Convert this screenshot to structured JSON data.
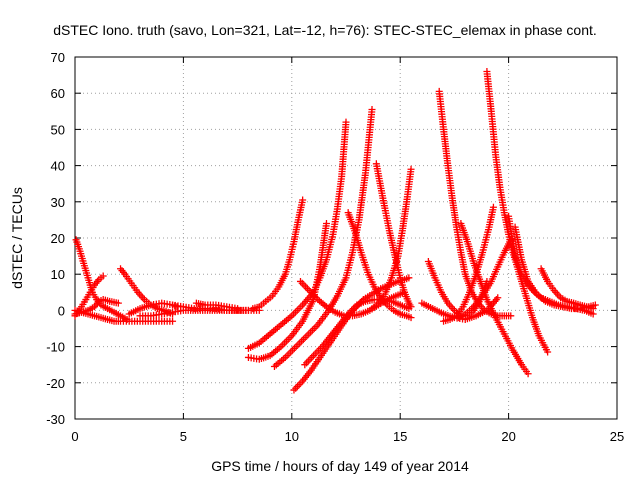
{
  "chart_data": {
    "type": "scatter",
    "title": "dSTEC Iono. truth (savo, Lon=321, Lat=-12, h=76): STEC-STEC_elemax in phase cont.",
    "xlabel": "GPS time / hours of day 149 of year 2014",
    "ylabel": "dSTEC  / TECUs",
    "xlim": [
      0,
      25
    ],
    "ylim": [
      -30,
      70
    ],
    "xticks": [
      0,
      5,
      10,
      15,
      20,
      25
    ],
    "yticks": [
      -30,
      -20,
      -10,
      0,
      10,
      20,
      30,
      40,
      50,
      60,
      70
    ],
    "grid": true,
    "marker": "+",
    "color": "#ff0000",
    "series": [
      {
        "x": [
          0.05,
          0.2,
          0.4,
          0.6,
          0.8,
          1.0,
          1.2,
          1.5,
          1.8,
          2.1,
          2.4
        ],
        "y": [
          19.5,
          17,
          13,
          9,
          5,
          3,
          1.5,
          0.5,
          -0.5,
          -1.5,
          -2.5
        ]
      },
      {
        "x": [
          0.0,
          0.3,
          0.6,
          0.9,
          1.1,
          1.3,
          1.6,
          2.0
        ],
        "y": [
          -1,
          -0.5,
          0,
          1,
          2.5,
          3,
          2.5,
          2
        ]
      },
      {
        "x": [
          0.0,
          0.3,
          0.6,
          0.9,
          1.2,
          1.5,
          1.8,
          2.1,
          2.5,
          3.0,
          3.5,
          4.0,
          4.5
        ],
        "y": [
          0,
          -0.5,
          -1,
          -1.5,
          -2,
          -2.5,
          -3,
          -3,
          -3,
          -3,
          -3,
          -3,
          -3
        ]
      },
      {
        "x": [
          0.0,
          0.3,
          0.5,
          0.7,
          0.9,
          1.1,
          1.3
        ],
        "y": [
          -1.5,
          1,
          3,
          5,
          7,
          8.5,
          9.5
        ]
      },
      {
        "x": [
          2.1,
          2.3,
          2.6,
          2.9,
          3.2,
          3.5,
          3.8,
          4.1,
          4.5
        ],
        "y": [
          11.5,
          10,
          7.5,
          5,
          3,
          1.5,
          0.5,
          0,
          -1
        ]
      },
      {
        "x": [
          2.5,
          3.0,
          3.5,
          4.0,
          4.5,
          4.7
        ],
        "y": [
          -1,
          0.5,
          1.5,
          2,
          1.5,
          1
        ]
      },
      {
        "x": [
          3.0,
          3.5,
          4.0,
          4.5,
          5.0,
          6.0,
          7.0,
          8.0
        ],
        "y": [
          -1.5,
          -1.5,
          -1,
          -0.5,
          0,
          0,
          0,
          0
        ]
      },
      {
        "x": [
          4.5,
          5.0,
          5.5,
          6.0,
          6.5,
          7.0,
          7.5,
          8.0,
          8.5
        ],
        "y": [
          1.5,
          1,
          0.5,
          0.5,
          0.5,
          0,
          0,
          0,
          0
        ]
      },
      {
        "x": [
          5.6,
          6.0,
          6.5,
          7.0,
          7.5
        ],
        "y": [
          2,
          1.5,
          1.5,
          1,
          0.5
        ]
      },
      {
        "x": [
          8.2,
          8.5,
          8.8,
          9.1,
          9.4,
          9.7,
          9.9,
          10.1,
          10.3,
          10.5
        ],
        "y": [
          0.5,
          1,
          2.5,
          4,
          6.5,
          10,
          14,
          19,
          25,
          30.5
        ]
      },
      {
        "x": [
          8.0,
          8.5,
          9.0,
          9.5,
          10.0,
          10.5,
          11.0,
          11.3,
          11.6,
          11.9,
          12.1,
          12.3,
          12.5
        ],
        "y": [
          -10.5,
          -9,
          -6.5,
          -4,
          -1.5,
          1.5,
          5,
          9,
          14,
          21,
          28,
          37,
          52
        ]
      },
      {
        "x": [
          8.0,
          8.5,
          9.0,
          9.5,
          10.0,
          10.5,
          11.0,
          11.3,
          11.6
        ],
        "y": [
          -13,
          -13.5,
          -12.5,
          -10,
          -7,
          -3,
          3,
          12,
          24
        ]
      },
      {
        "x": [
          9.2,
          9.7,
          10.2,
          10.7,
          11.2,
          11.7,
          12.1,
          12.5,
          12.8,
          13.1,
          13.4,
          13.7
        ],
        "y": [
          -15.5,
          -13,
          -10,
          -7,
          -4,
          0,
          4,
          9,
          16,
          25,
          38,
          55.5
        ]
      },
      {
        "x": [
          10.1,
          10.5,
          10.9,
          11.3,
          11.7,
          12.1,
          12.5,
          12.9,
          13.3,
          13.7,
          14.1,
          14.5,
          14.9,
          15.2,
          15.4
        ],
        "y": [
          -22,
          -19.5,
          -16.5,
          -13,
          -9.5,
          -6,
          -2.5,
          0.5,
          3,
          4.5,
          6,
          7,
          8,
          8.5,
          9
        ]
      },
      {
        "x": [
          10.6,
          11.0,
          11.4,
          11.8,
          12.2,
          12.6,
          13.0,
          13.4,
          13.8,
          14.2,
          14.6,
          15.0,
          15.4
        ],
        "y": [
          -15,
          -12.5,
          -10,
          -7,
          -4,
          -1,
          1.5,
          2.5,
          3,
          3,
          2.5,
          1.5,
          0.5
        ]
      },
      {
        "x": [
          10.4,
          10.8,
          11.2,
          11.6,
          12.0,
          12.4,
          12.8,
          13.2,
          13.6,
          14.0,
          14.4,
          14.8,
          15.2
        ],
        "y": [
          8,
          5.5,
          3,
          1,
          -0.5,
          -1.5,
          -1.5,
          -1,
          0,
          1.5,
          3,
          4,
          5
        ]
      },
      {
        "x": [
          12.6,
          12.9,
          13.2,
          13.5,
          13.8,
          14.1,
          14.4,
          14.7,
          15.0,
          15.3,
          15.5
        ],
        "y": [
          27,
          22,
          16,
          10.5,
          6.5,
          3.5,
          1.5,
          0,
          -1,
          -1.5,
          -2
        ]
      },
      {
        "x": [
          13.9,
          14.2,
          14.5,
          14.8,
          15.0,
          15.2,
          15.4,
          15.5
        ],
        "y": [
          40.5,
          31,
          22,
          14,
          9,
          5,
          2,
          1
        ]
      },
      {
        "x": [
          13.7,
          14.0,
          14.3,
          14.6,
          14.9,
          15.1,
          15.3,
          15.5
        ],
        "y": [
          0.5,
          2,
          4.5,
          9,
          15,
          22,
          30,
          39
        ]
      },
      {
        "x": [
          16.3,
          16.6,
          16.9,
          17.2,
          17.5,
          17.8,
          18.1,
          18.4,
          18.7,
          19.0
        ],
        "y": [
          13.5,
          9,
          5,
          2,
          0,
          -1.5,
          -1.5,
          0,
          3,
          8
        ]
      },
      {
        "x": [
          16.0,
          16.5,
          17.0,
          17.5,
          18.0,
          18.5,
          19.0,
          19.3,
          19.5
        ],
        "y": [
          2,
          0.5,
          -1,
          -2,
          -2.5,
          -1.5,
          0,
          2,
          3.5
        ]
      },
      {
        "x": [
          16.8,
          17.0,
          17.2,
          17.4,
          17.6,
          17.8,
          18.0,
          18.3,
          18.6,
          18.9,
          19.2,
          19.5,
          19.8,
          20.1
        ],
        "y": [
          60.5,
          50,
          40,
          31,
          23,
          16,
          10,
          5,
          2,
          0,
          -1,
          -1.5,
          -1.5,
          -1.5
        ]
      },
      {
        "x": [
          17.0,
          17.3,
          17.6,
          17.9,
          18.2,
          18.5,
          18.8,
          19.1,
          19.3
        ],
        "y": [
          -3,
          -2.5,
          -1.5,
          1,
          5,
          10,
          16,
          23,
          28.5
        ]
      },
      {
        "x": [
          17.8,
          18.1,
          18.4,
          18.7,
          19.0,
          19.4,
          19.8,
          20.2,
          20.6,
          20.9
        ],
        "y": [
          24,
          19,
          13,
          8,
          3,
          -2,
          -6.5,
          -11,
          -15,
          -17.5
        ]
      },
      {
        "x": [
          17.7,
          18.0,
          18.3,
          18.6,
          18.9,
          19.2,
          19.5,
          19.8,
          20.1
        ],
        "y": [
          -2,
          -1,
          0.5,
          2.5,
          5,
          8,
          12,
          16,
          19.5
        ]
      },
      {
        "x": [
          19.0,
          19.2,
          19.4,
          19.6,
          19.8,
          20.0,
          20.2,
          20.5,
          20.8,
          21.1,
          21.4,
          21.8
        ],
        "y": [
          66,
          55,
          43,
          34,
          27,
          21,
          16,
          10,
          4,
          -2,
          -7,
          -11.5
        ]
      },
      {
        "x": [
          20.0,
          20.3,
          20.6,
          20.9,
          21.2,
          21.5,
          21.9,
          22.3,
          22.7,
          23.1,
          23.5,
          23.9
        ],
        "y": [
          26,
          15,
          10,
          7,
          5,
          3.5,
          2.5,
          1.5,
          1,
          0.5,
          0,
          -1
        ]
      },
      {
        "x": [
          20.3,
          20.6,
          20.9,
          21.3,
          21.7,
          22.1,
          22.5,
          22.9,
          23.3,
          23.7,
          24.0
        ],
        "y": [
          23,
          14,
          8,
          4.5,
          2.5,
          1.5,
          1,
          0.5,
          0.5,
          1,
          1.5
        ]
      },
      {
        "x": [
          21.5,
          21.8,
          22.1,
          22.4,
          22.7,
          23.0,
          23.3,
          23.6,
          23.9
        ],
        "y": [
          11.5,
          8,
          5.5,
          3.5,
          2.5,
          2,
          1.5,
          1,
          0.5
        ]
      }
    ]
  }
}
